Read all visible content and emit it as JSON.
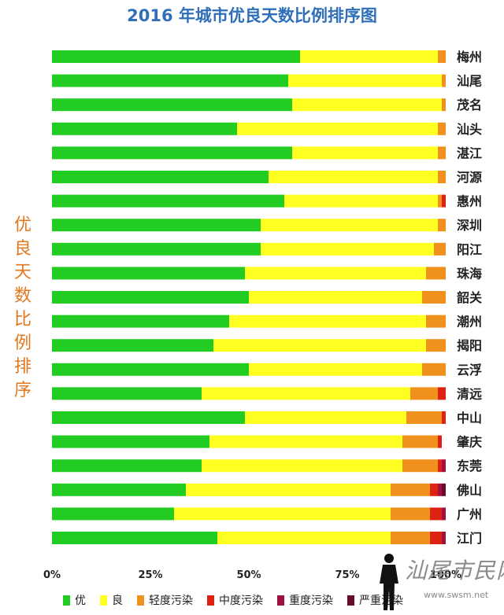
{
  "chart_data": {
    "type": "bar",
    "orientation": "horizontal",
    "stacked": true,
    "title": "2016 年城市优良天数比例排序图",
    "ylabel": "优良天数比例排序",
    "xlim": [
      0,
      100
    ],
    "x_ticks": [
      "0%",
      "25%",
      "50%",
      "75%",
      "100%"
    ],
    "grid": false,
    "legend_position": "bottom",
    "categories": [
      "梅州",
      "汕尾",
      "茂名",
      "汕头",
      "湛江",
      "河源",
      "惠州",
      "深圳",
      "阳江",
      "珠海",
      "韶关",
      "潮州",
      "揭阳",
      "云浮",
      "清远",
      "中山",
      "肇庆",
      "东莞",
      "佛山",
      "广州",
      "江门"
    ],
    "series": [
      {
        "name": "优",
        "color": "#22cc22",
        "values": [
          63,
          60,
          61,
          47,
          61,
          55,
          59,
          53,
          53,
          49,
          50,
          45,
          41,
          50,
          38,
          49,
          40,
          38,
          34,
          31,
          42
        ]
      },
      {
        "name": "良",
        "color": "#ffff22",
        "values": [
          35,
          39,
          38,
          51,
          37,
          43,
          39,
          45,
          44,
          46,
          44,
          50,
          54,
          44,
          53,
          41,
          49,
          51,
          52,
          55,
          44
        ]
      },
      {
        "name": "轻度污染",
        "color": "#f0911e",
        "values": [
          2,
          1,
          1,
          2,
          2,
          2,
          1,
          2,
          3,
          5,
          6,
          5,
          5,
          6,
          7,
          9,
          9,
          9,
          10,
          10,
          10
        ]
      },
      {
        "name": "中度污染",
        "color": "#dd2211",
        "values": [
          0,
          0,
          0,
          0,
          0,
          0,
          1,
          0,
          0,
          0,
          0,
          0,
          0,
          0,
          2,
          1,
          1,
          1,
          2,
          3,
          3
        ]
      },
      {
        "name": "重度污染",
        "color": "#a01040",
        "values": [
          0,
          0,
          0,
          0,
          0,
          0,
          0,
          0,
          0,
          0,
          0,
          0,
          0,
          0,
          0,
          0,
          0,
          1,
          1,
          1,
          1
        ]
      },
      {
        "name": "严重污染",
        "color": "#6a0a26",
        "values": [
          0,
          0,
          0,
          0,
          0,
          0,
          0,
          0,
          0,
          0,
          0,
          0,
          0,
          0,
          0,
          0,
          0,
          0,
          1,
          0,
          0
        ]
      }
    ]
  },
  "legend": {
    "marker_color": "#22cc22",
    "items": [
      "优",
      "良",
      "轻度污染",
      "中度污染",
      "重度污染",
      "严重污染"
    ]
  },
  "watermark": {
    "text": "汕尾市民网",
    "url": "www.swsm.net"
  }
}
